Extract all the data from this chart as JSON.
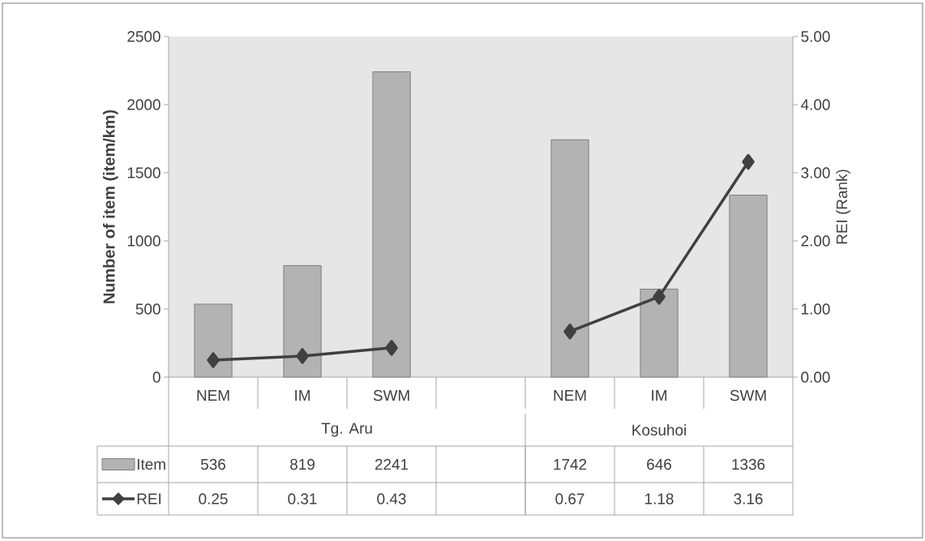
{
  "chart_data": {
    "type": "bar",
    "categories": [
      "NEM",
      "IM",
      "SWM",
      null,
      "NEM",
      "IM",
      "SWM"
    ],
    "series": [
      {
        "name": "Item",
        "color": "#b3b3b3",
        "values": [
          536,
          819,
          2241,
          null,
          1742,
          646,
          1336
        ]
      },
      {
        "name": "REI",
        "type": "line",
        "axis": "y2",
        "color": "#404040",
        "marker": "diamond",
        "values": [
          0.25,
          0.31,
          0.43,
          null,
          0.67,
          1.18,
          3.16
        ]
      }
    ],
    "ylabel": "Number of item (item/km)",
    "y2label": "REI (Rank)",
    "ylim": [
      0,
      2500
    ],
    "yticks": [
      0,
      500,
      1000,
      1500,
      2000,
      2500
    ],
    "y2lim": [
      0,
      5
    ],
    "y2ticks": [
      {
        "value": 0,
        "label": "0.00"
      },
      {
        "value": 1,
        "label": "1.00"
      },
      {
        "value": 2,
        "label": "2.00"
      },
      {
        "value": 3,
        "label": "3.00"
      },
      {
        "value": 4,
        "label": "4.00"
      },
      {
        "value": 5,
        "label": "5.00"
      }
    ],
    "annotations": [
      "Tg. Aru",
      "Kosuhoi"
    ],
    "data_labels": true,
    "legend": "bottom",
    "grid": false
  }
}
